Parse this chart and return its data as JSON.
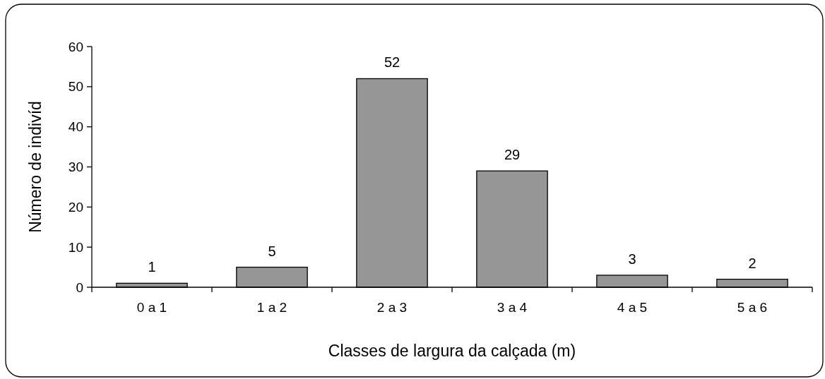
{
  "chart_data": {
    "type": "bar",
    "xlabel": "Classes de largura da calçada (m)",
    "ylabel": "Número de indivíd",
    "categories": [
      "0 a 1",
      "1 a 2",
      "2 a 3",
      "3 a 4",
      "4 a 5",
      "5 a 6"
    ],
    "values": [
      1,
      5,
      52,
      29,
      3,
      2
    ],
    "color": "#969696",
    "data_labels": true,
    "ylim": [
      0,
      60
    ],
    "yticks": [
      0,
      10,
      20,
      30,
      40,
      50,
      60
    ]
  }
}
